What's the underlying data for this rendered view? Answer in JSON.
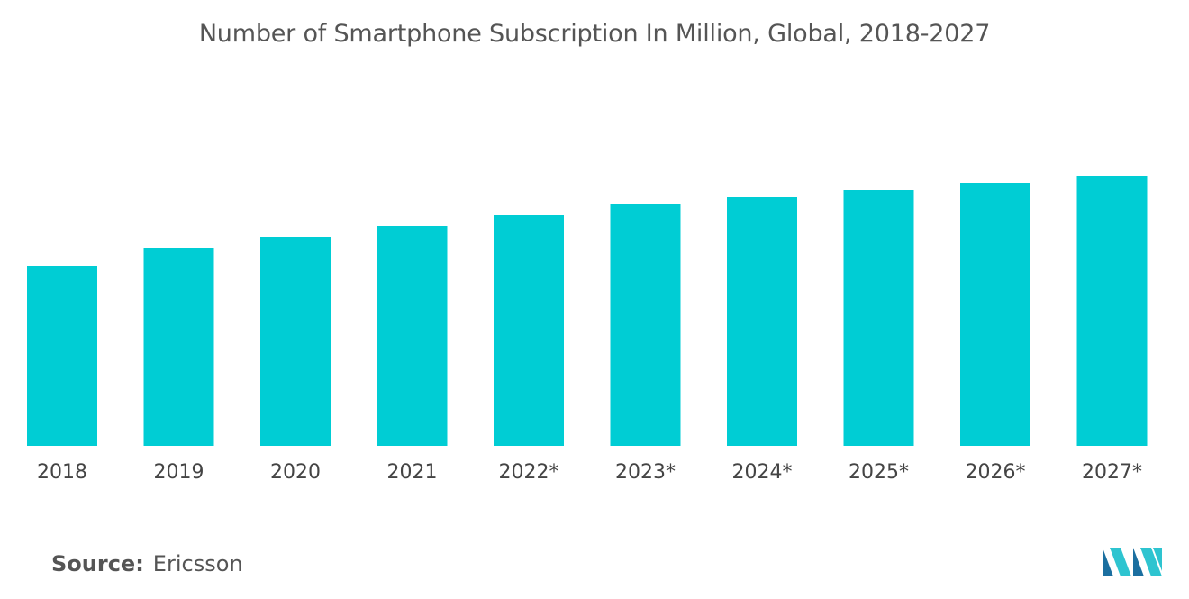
{
  "chart_data": {
    "type": "bar",
    "title": "Number of Smartphone Subscription In Million, Global, 2018-2027",
    "xlabel": "",
    "ylabel": "",
    "categories": [
      "2018",
      "2019",
      "2020",
      "2021",
      "2022*",
      "2023*",
      "2024*",
      "2025*",
      "2026*",
      "2027*"
    ],
    "values": [
      5000,
      5500,
      5800,
      6100,
      6400,
      6700,
      6900,
      7100,
      7300,
      7500
    ],
    "ylim": [
      0,
      10000
    ],
    "grid": false,
    "legend": "none",
    "bar_color": "#00CDD4"
  },
  "source": {
    "label": "Source:",
    "value": "Ericsson"
  },
  "logo": {
    "icon": "mordor-intelligence-logo-icon",
    "color_dark": "#1b6fa0",
    "color_light": "#2ec4d0"
  }
}
